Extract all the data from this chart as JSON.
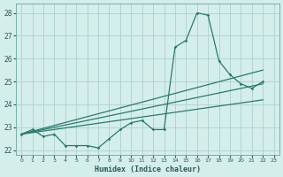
{
  "xlabel": "Humidex (Indice chaleur)",
  "bg_color": "#d4eeec",
  "grid_color": "#aed0cc",
  "line_color": "#2a7a6e",
  "xlim": [
    -0.5,
    23.5
  ],
  "ylim": [
    21.8,
    28.4
  ],
  "xticks": [
    0,
    1,
    2,
    3,
    4,
    5,
    6,
    7,
    8,
    9,
    10,
    11,
    12,
    13,
    14,
    15,
    16,
    17,
    18,
    19,
    20,
    21,
    22,
    23
  ],
  "yticks": [
    22,
    23,
    24,
    25,
    26,
    27,
    28
  ],
  "main_x": [
    0,
    1,
    2,
    3,
    4,
    5,
    6,
    7,
    8,
    9,
    10,
    11,
    12,
    13,
    14,
    15,
    16,
    17,
    18,
    19,
    20,
    21,
    22
  ],
  "main_y": [
    22.7,
    22.9,
    22.6,
    22.7,
    22.2,
    22.2,
    22.2,
    22.1,
    22.5,
    22.9,
    23.2,
    23.3,
    22.9,
    22.9,
    26.5,
    26.8,
    28.0,
    27.9,
    25.9,
    25.3,
    24.9,
    24.7,
    25.0
  ],
  "line1_x": [
    0,
    22
  ],
  "line1_y": [
    22.7,
    25.5
  ],
  "line2_x": [
    0,
    22
  ],
  "line2_y": [
    22.7,
    24.9
  ],
  "line3_x": [
    0,
    22
  ],
  "line3_y": [
    22.7,
    24.2
  ],
  "marker_x": [
    0,
    1,
    2,
    3,
    4,
    5,
    6,
    7,
    8,
    9,
    10,
    11,
    12,
    13,
    14,
    15,
    16,
    17,
    18,
    19,
    20,
    21,
    22
  ],
  "marker_y": [
    22.7,
    22.9,
    22.6,
    22.7,
    22.2,
    22.2,
    22.2,
    22.1,
    22.5,
    22.9,
    23.2,
    23.3,
    22.9,
    22.9,
    26.5,
    26.8,
    28.0,
    27.9,
    25.9,
    25.3,
    24.9,
    24.7,
    25.0
  ]
}
